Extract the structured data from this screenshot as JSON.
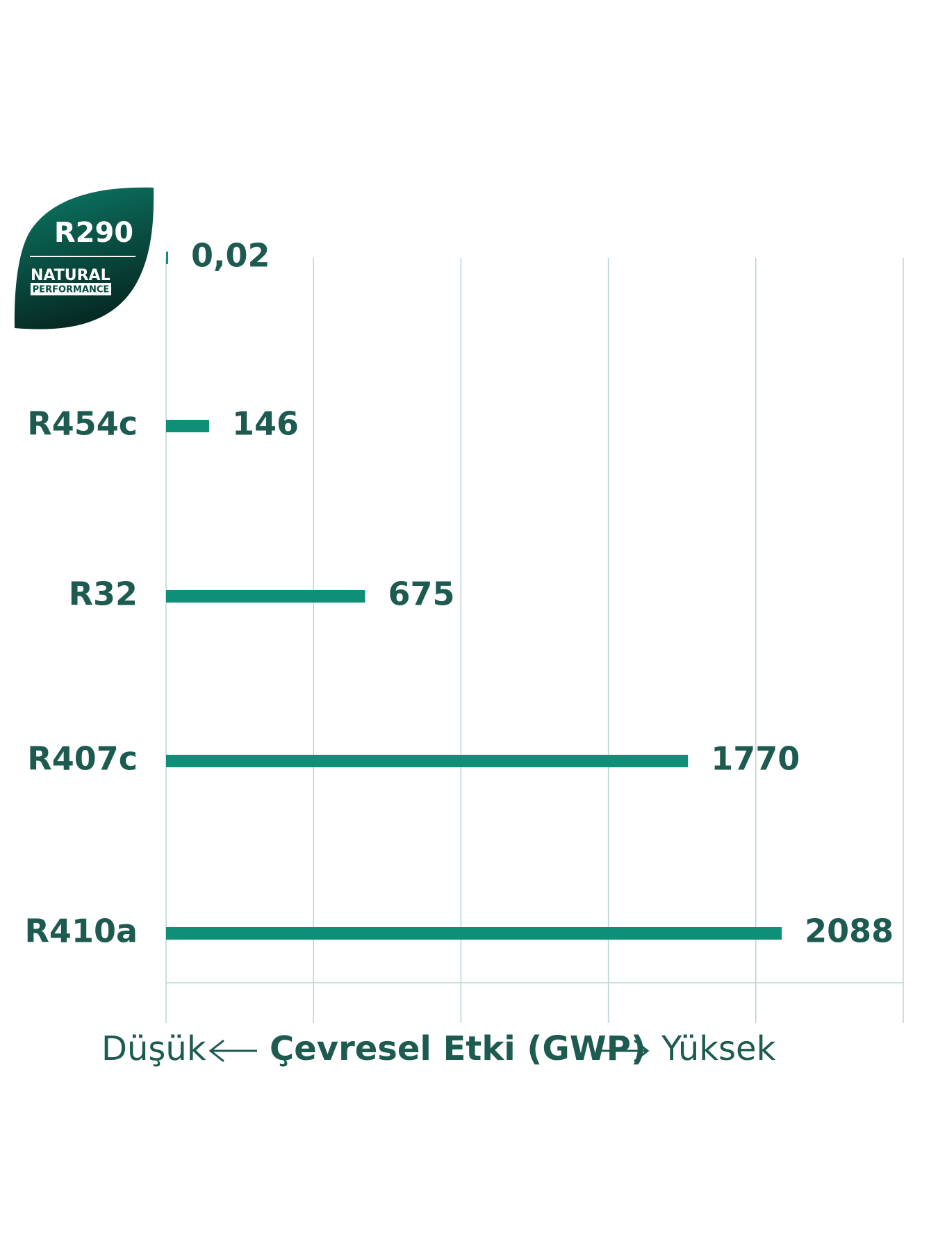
{
  "chart_data": {
    "type": "bar",
    "orientation": "horizontal",
    "categories": [
      "R290",
      "R454c",
      "R32",
      "R407c",
      "R410a"
    ],
    "values": [
      0.02,
      146,
      675,
      1770,
      2088
    ],
    "value_labels": [
      "0,02",
      "146",
      "675",
      "1770",
      "2088"
    ],
    "color": "#0f8f77",
    "xlim": [
      0,
      2500
    ],
    "xticks": [
      0,
      500,
      1000,
      1500,
      2000,
      2500
    ],
    "grid": true,
    "x_axis_label": {
      "low": "Düşük",
      "title": "Çevresel Etki (GWP)",
      "high": "Yüksek"
    },
    "badge": {
      "line1": "NATURAL",
      "line2": "PERFORMANCE"
    }
  }
}
